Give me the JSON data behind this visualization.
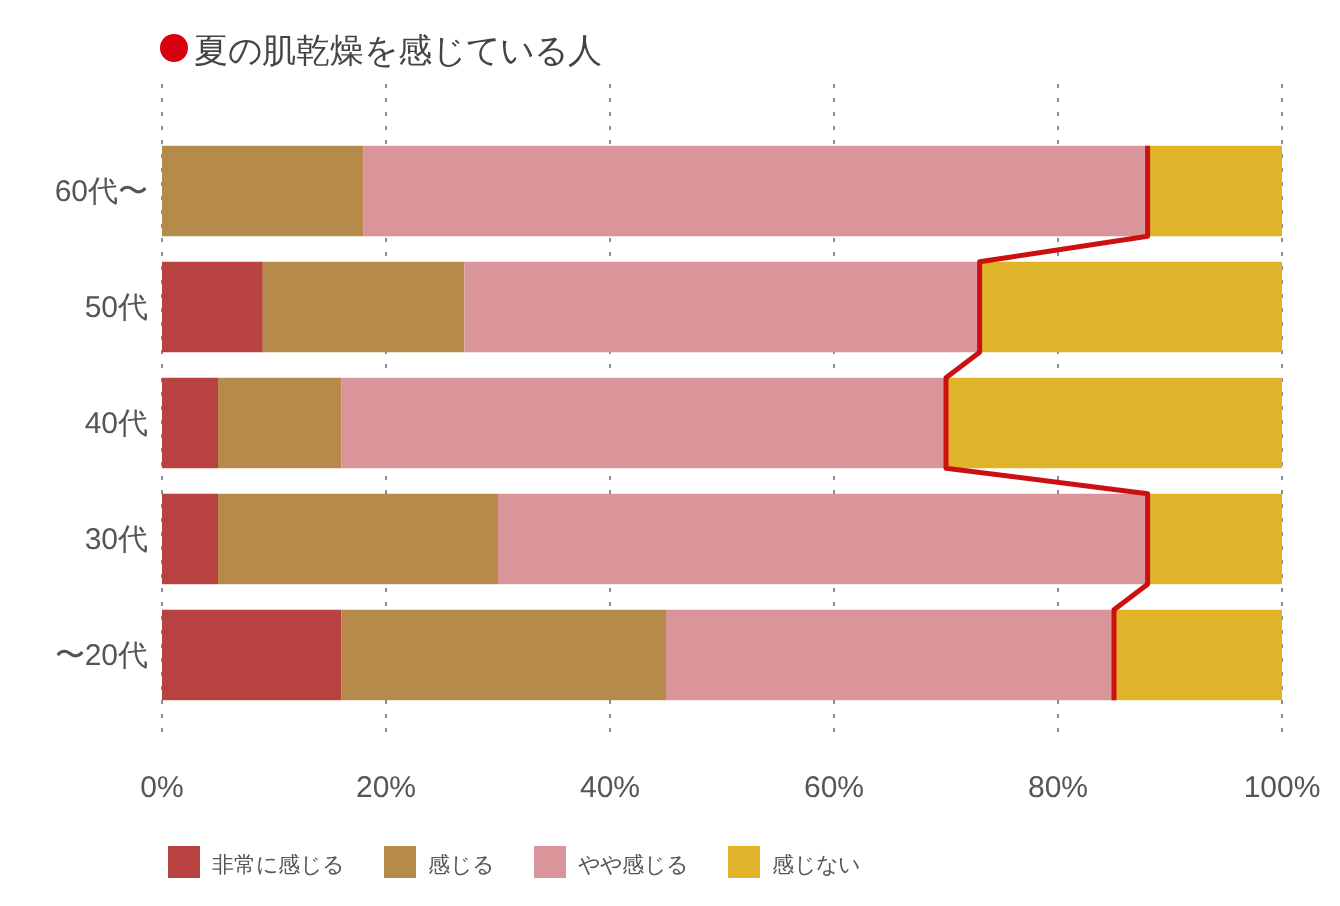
{
  "chart_data": {
    "type": "bar",
    "orientation": "horizontal",
    "stacked": true,
    "title": "夏の肌乾燥を感じている人",
    "categories": [
      "60代〜",
      "50代",
      "40代",
      "30代",
      "〜20代"
    ],
    "series": [
      {
        "name": "非常に感じる",
        "color": "#b8423f",
        "values": [
          0,
          9,
          5,
          5,
          16
        ]
      },
      {
        "name": "感じる",
        "color": "#b58a4a",
        "values": [
          18,
          18,
          11,
          25,
          29
        ]
      },
      {
        "name": "やや感じる",
        "color": "#d9959a",
        "values": [
          70,
          46,
          54,
          58,
          40
        ]
      },
      {
        "name": "感じない",
        "color": "#dfb42a",
        "values": [
          12,
          27,
          30,
          12,
          15
        ]
      }
    ],
    "xlim": [
      0,
      100
    ],
    "xticks": [
      {
        "value": 0,
        "label": "0%"
      },
      {
        "value": 20,
        "label": "20%"
      },
      {
        "value": 40,
        "label": "40%"
      },
      {
        "value": 60,
        "label": "60%"
      },
      {
        "value": 80,
        "label": "80%"
      },
      {
        "value": 100,
        "label": "100%"
      }
    ],
    "grid": "x",
    "legend": "bottom"
  }
}
